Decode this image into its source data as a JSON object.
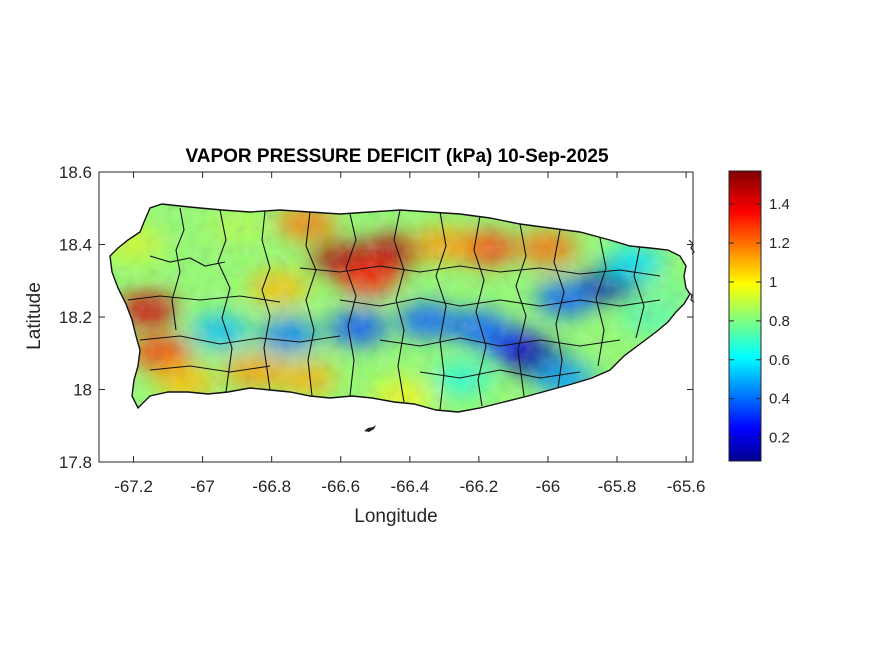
{
  "chart_data": {
    "type": "heatmap",
    "title": "VAPOR PRESSURE DEFICIT (kPa) 10-Sep-2025",
    "xlabel": "Longitude",
    "ylabel": "Latitude",
    "xlim": [
      -67.3,
      -65.58
    ],
    "ylim": [
      17.8,
      18.6
    ],
    "x_ticks": [
      -67.2,
      -67,
      -66.8,
      -66.6,
      -66.4,
      -66.2,
      -66,
      -65.8,
      -65.6
    ],
    "x_tick_labels": [
      "-67.2",
      "-67",
      "-66.8",
      "-66.6",
      "-66.4",
      "-66.2",
      "-66",
      "-65.8",
      "-65.6"
    ],
    "y_ticks": [
      17.8,
      18,
      18.2,
      18.4,
      18.6
    ],
    "y_tick_labels": [
      "17.8",
      "18",
      "18.2",
      "18.4",
      "18.6"
    ],
    "colorbar": {
      "colormap": "jet",
      "range": [
        0.08,
        1.57
      ],
      "ticks": [
        0.2,
        0.4,
        0.6,
        0.8,
        1,
        1.2,
        1.4
      ],
      "tick_labels": [
        "0.2",
        "0.4",
        "0.6",
        "0.8",
        "1",
        "1.2",
        "1.4"
      ]
    },
    "field": {
      "background_value": 0.85,
      "features": [
        {
          "lon": -66.6,
          "lat": 18.36,
          "value": 1.52
        },
        {
          "lon": -66.45,
          "lat": 18.38,
          "value": 1.5
        },
        {
          "lon": -66.52,
          "lat": 18.31,
          "value": 1.35
        },
        {
          "lon": -66.18,
          "lat": 18.39,
          "value": 1.3
        },
        {
          "lon": -66.0,
          "lat": 18.39,
          "value": 1.22
        },
        {
          "lon": -66.3,
          "lat": 18.4,
          "value": 1.15
        },
        {
          "lon": -67.16,
          "lat": 18.22,
          "value": 1.45
        },
        {
          "lon": -67.12,
          "lat": 18.1,
          "value": 1.3
        },
        {
          "lon": -67.05,
          "lat": 18.02,
          "value": 1.1
        },
        {
          "lon": -66.85,
          "lat": 18.05,
          "value": 1.15
        },
        {
          "lon": -66.7,
          "lat": 18.03,
          "value": 1.12
        },
        {
          "lon": -66.78,
          "lat": 18.28,
          "value": 1.1
        },
        {
          "lon": -66.42,
          "lat": 17.98,
          "value": 1.0
        },
        {
          "lon": -66.75,
          "lat": 18.15,
          "value": 0.45
        },
        {
          "lon": -66.55,
          "lat": 18.17,
          "value": 0.38
        },
        {
          "lon": -66.35,
          "lat": 18.19,
          "value": 0.4
        },
        {
          "lon": -66.95,
          "lat": 18.16,
          "value": 0.55
        },
        {
          "lon": -66.1,
          "lat": 18.12,
          "value": 0.25
        },
        {
          "lon": -66.03,
          "lat": 18.08,
          "value": 0.12
        },
        {
          "lon": -66.2,
          "lat": 18.17,
          "value": 0.4
        },
        {
          "lon": -65.82,
          "lat": 18.29,
          "value": 0.12
        },
        {
          "lon": -65.95,
          "lat": 18.25,
          "value": 0.4
        },
        {
          "lon": -65.95,
          "lat": 18.03,
          "value": 0.5
        },
        {
          "lon": -66.25,
          "lat": 18.03,
          "value": 0.7
        },
        {
          "lon": -65.7,
          "lat": 18.2,
          "value": 0.75
        },
        {
          "lon": -65.75,
          "lat": 18.35,
          "value": 0.6
        },
        {
          "lon": -66.9,
          "lat": 18.45,
          "value": 0.9
        },
        {
          "lon": -67.2,
          "lat": 18.4,
          "value": 0.95
        },
        {
          "lon": -66.7,
          "lat": 18.46,
          "value": 1.2
        },
        {
          "lon": -65.65,
          "lat": 18.25,
          "value": 0.8
        }
      ]
    }
  }
}
